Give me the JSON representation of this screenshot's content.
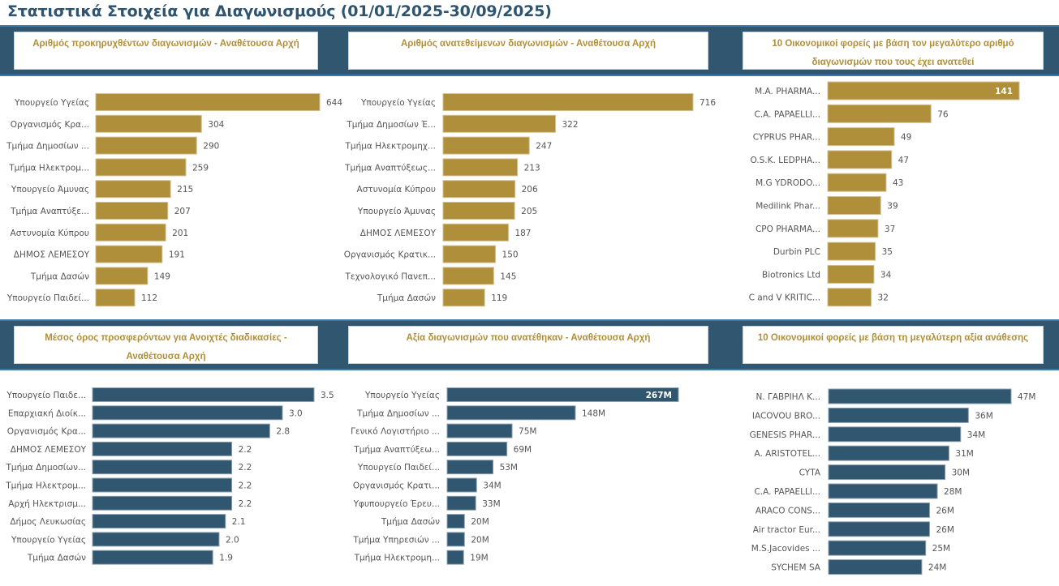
{
  "page": {
    "title": "Στατιστικά Στοιχεία για Διαγωνισμούς (01/01/2025-30/09/2025)"
  },
  "colors": {
    "banner": "#31566F",
    "gold_bar": "#B08F3A",
    "blue_bar": "#31566F",
    "title_text": "#2E5470",
    "card_title_text": "#B08F3A"
  },
  "chart_data": [
    {
      "type": "bar",
      "orientation": "horizontal",
      "title": "Αριθμός προκηρυχθέντων διαγωνισμών - Αναθέτουσα Αρχή",
      "categories": [
        "Υπουργείο Υγείας",
        "Οργανισμός Κρα...",
        "Τμήμα Δημοσίων ...",
        "Τμήμα Ηλεκτρομ...",
        "Υπουργείο Άμυνας",
        "Τμήμα Αναπτύξε...",
        "Αστυνομία Κύπρου",
        "ΔΗΜΟΣ ΛΕΜΕΣΟΥ",
        "Τμήμα Δασών",
        "Υπουργείο Παιδεί..."
      ],
      "values": [
        644,
        304,
        290,
        259,
        215,
        207,
        201,
        191,
        149,
        112
      ],
      "labels": [
        "644",
        "304",
        "290",
        "259",
        "215",
        "207",
        "201",
        "191",
        "149",
        "112"
      ],
      "color": "#B08F3A",
      "xlim": [
        0,
        644
      ],
      "grid": false
    },
    {
      "type": "bar",
      "orientation": "horizontal",
      "title": "Αριθμός ανατεθείμενων διαγωνισμών - Αναθέτουσα Αρχή",
      "categories": [
        "Υπουργείο Υγείας",
        "Τμήμα Δημοσίων Έ...",
        "Τμήμα Ηλεκτρομηχ...",
        "Τμήμα Αναπτύξεως...",
        "Αστυνομία Κύπρου",
        "Υπουργείο Άμυνας",
        "ΔΗΜΟΣ ΛΕΜΕΣΟΥ",
        "Οργανισμός Κρατικ...",
        "Τεχνολογικό Πανεπ...",
        "Τμήμα Δασών"
      ],
      "values": [
        716,
        322,
        247,
        213,
        206,
        205,
        187,
        150,
        145,
        119
      ],
      "labels": [
        "716",
        "322",
        "247",
        "213",
        "206",
        "205",
        "187",
        "150",
        "145",
        "119"
      ],
      "color": "#B08F3A",
      "xlim": [
        0,
        716
      ],
      "grid": false
    },
    {
      "type": "bar",
      "orientation": "horizontal",
      "title": "10 Οικονομικοί φορείς με βάση τον μεγαλύτερο αριθμό διαγωνισμών που τους έχει ανατεθεί",
      "categories": [
        "M.A. PHARMA...",
        "C.A. PAPAELLI...",
        "CYPRUS PHAR...",
        "O.S.K. LEDPHA...",
        "M.G YDRODO...",
        "Medilink Phar...",
        "CPO PHARMA...",
        "Durbin PLC",
        "Biotronics Ltd",
        "C and V KRITIC..."
      ],
      "values": [
        141,
        76,
        49,
        47,
        43,
        39,
        37,
        35,
        34,
        32
      ],
      "labels": [
        "141",
        "76",
        "49",
        "47",
        "43",
        "39",
        "37",
        "35",
        "34",
        "32"
      ],
      "color": "#B08F3A",
      "xlim": [
        0,
        141
      ],
      "inside_label_first": true,
      "grid": false
    },
    {
      "type": "bar",
      "orientation": "horizontal",
      "title": "Μέσος όρος προσφερόντων για Ανοιχτές διαδικασίες - Αναθέτουσα Αρχή",
      "categories": [
        "Υπουργείο Παιδε...",
        "Επαρχιακή Διοίκ...",
        "Οργανισμός Κρα...",
        "ΔΗΜΟΣ ΛΕΜΕΣΟΥ",
        "Τμήμα Δημοσίων...",
        "Τμήμα Ηλεκτρομ...",
        "Αρχή Ηλεκτρισμ...",
        "Δήμος Λευκωσίας",
        "Υπουργείο Υγείας",
        "Τμήμα Δασών"
      ],
      "values": [
        3.5,
        3.0,
        2.8,
        2.2,
        2.2,
        2.2,
        2.2,
        2.1,
        2.0,
        1.9
      ],
      "labels": [
        "3.5",
        "3.0",
        "2.8",
        "2.2",
        "2.2",
        "2.2",
        "2.2",
        "2.1",
        "2.0",
        "1.9"
      ],
      "color": "#31566F",
      "xlim": [
        0,
        3.5
      ],
      "grid": false
    },
    {
      "type": "bar",
      "orientation": "horizontal",
      "title": "Αξία διαγωνισμών που ανατέθηκαν - Αναθέτουσα Αρχή",
      "categories": [
        "Υπουργείο Υγείας",
        "Τμήμα Δημοσίων ...",
        "Γενικό Λογιστήριο ...",
        "Τμήμα Αναπτύξεω...",
        "Υπουργείο Παιδεί...",
        "Οργανισμός Κρατι...",
        "Υφυπουργείο Έρευ...",
        "Τμήμα Δασών",
        "Τμήμα Υπηρεσιών ...",
        "Τμήμα Ηλεκτρομη..."
      ],
      "values": [
        267,
        148,
        75,
        69,
        53,
        34,
        33,
        20,
        20,
        19
      ],
      "labels": [
        "267M",
        "148M",
        "75M",
        "69M",
        "53M",
        "34M",
        "33M",
        "20M",
        "20M",
        "19M"
      ],
      "unit": "M",
      "color": "#31566F",
      "xlim": [
        0,
        267
      ],
      "inside_label_first": true,
      "grid": false
    },
    {
      "type": "bar",
      "orientation": "horizontal",
      "title": "10 Οικονομικοί φορείς με βάση τη μεγαλύτερη αξία ανάθεσης",
      "categories": [
        "N. ΓΑΒΡΙΗΛ Κ...",
        "IACOVOU BRO...",
        "GENESIS PHAR...",
        "A. ARISTOTEL...",
        "CYTA",
        "C.A. PAPAELLI...",
        "ARACO CONS...",
        "Air tractor Eur...",
        "M.S.Jacovides ...",
        "SYCHEM SA"
      ],
      "values": [
        47,
        36,
        34,
        31,
        30,
        28,
        26,
        26,
        25,
        24
      ],
      "labels": [
        "47M",
        "36M",
        "34M",
        "31M",
        "30M",
        "28M",
        "26M",
        "26M",
        "25M",
        "24M"
      ],
      "unit": "M",
      "color": "#31566F",
      "xlim": [
        0,
        47
      ],
      "grid": false
    }
  ]
}
